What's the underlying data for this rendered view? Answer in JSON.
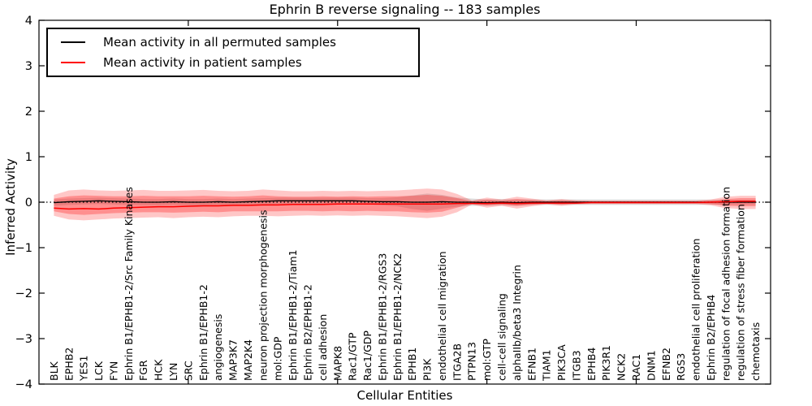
{
  "figure": {
    "title": "Ephrin B reverse signaling -- 183 samples",
    "xlabel": "Cellular Entities",
    "ylabel": "Inferred Activity"
  },
  "legend": {
    "position": "upper left",
    "items": [
      {
        "label": "Mean activity in all permuted samples",
        "color": "#000000"
      },
      {
        "label": "Mean activity in patient samples",
        "color": "#ff0000"
      }
    ]
  },
  "axes": {
    "ylim": [
      -4,
      4
    ],
    "xlim": [
      0,
      49
    ],
    "yticks": [
      {
        "value": 4,
        "label": "4"
      },
      {
        "value": 3,
        "label": "3"
      },
      {
        "value": 2,
        "label": "2"
      },
      {
        "value": 1,
        "label": "1"
      },
      {
        "value": 0,
        "label": "0"
      },
      {
        "value": -1,
        "label": "−1"
      },
      {
        "value": -2,
        "label": "−2"
      },
      {
        "value": -3,
        "label": "−3"
      },
      {
        "value": -4,
        "label": "−4"
      }
    ],
    "xtick_positions": [
      10,
      20,
      30,
      40
    ]
  },
  "colors": {
    "permuted_line": "#000000",
    "patient_line": "#ff0000",
    "patient_band": "#ff0000",
    "permuted_band": "#999999",
    "zero_line": "#000000",
    "frame": "#000000"
  },
  "chart_data": {
    "type": "line",
    "title": "Ephrin B reverse signaling -- 183 samples",
    "xlabel": "Cellular Entities",
    "ylabel": "Inferred Activity",
    "ylim": [
      -4,
      4
    ],
    "grid": false,
    "zero_line_style": "dotted",
    "legend_position": "upper left",
    "categories": [
      "BLK",
      "EPHB2",
      "YES1",
      "LCK",
      "FYN",
      "Ephrin B1/EPHB1-2/Src Family Kinases",
      "FGR",
      "HCK",
      "LYN",
      "SRC",
      "Ephrin B1/EPHB1-2",
      "angiogenesis",
      "MAP3K7",
      "MAP2K4",
      "neuron projection morphogenesis",
      "mol:GDP",
      "Ephrin B1/EPHB1-2/Tiam1",
      "Ephrin B2/EPHB1-2",
      "cell adhesion",
      "MAPK8",
      "Rac1/GTP",
      "Rac1/GDP",
      "Ephrin B1/EPHB1-2/RGS3",
      "Ephrin B1/EPHB1-2/NCK2",
      "EPHB1",
      "PI3K",
      "endothelial cell migration",
      "ITGA2B",
      "PTPN13",
      "mol:GTP",
      "cell-cell signaling",
      "alphaIIb/beta3 Integrin",
      "EFNB1",
      "TIAM1",
      "PIK3CA",
      "ITGB3",
      "EPHB4",
      "PIK3R1",
      "NCK2",
      "RAC1",
      "DNM1",
      "EFNB2",
      "RGS3",
      "endothelial cell proliferation",
      "Ephrin B2/EPHB4",
      "regulation of focal adhesion formation",
      "regulation of stress fiber formation",
      "chemotaxis"
    ],
    "series": [
      {
        "name": "Mean activity in all permuted samples",
        "color": "#000000",
        "values": [
          -0.01,
          0.01,
          0.02,
          0.03,
          0.02,
          0.01,
          0.0,
          0.0,
          0.01,
          0.0,
          0.0,
          0.01,
          0.0,
          0.01,
          0.02,
          0.03,
          0.03,
          0.03,
          0.03,
          0.03,
          0.03,
          0.02,
          0.01,
          0.01,
          0.0,
          0.0,
          0.01,
          0.0,
          0.0,
          -0.01,
          0.0,
          -0.01,
          0.0,
          0.0,
          0.0,
          0.0,
          0.0,
          0.0,
          0.0,
          0.0,
          0.0,
          0.0,
          0.0,
          0.0,
          0.0,
          0.0,
          0.0,
          0.0
        ]
      },
      {
        "name": "Mean activity in patient samples",
        "color": "#ff0000",
        "values": [
          -0.13,
          -0.15,
          -0.14,
          -0.15,
          -0.13,
          -0.12,
          -0.11,
          -0.1,
          -0.1,
          -0.09,
          -0.08,
          -0.08,
          -0.07,
          -0.07,
          -0.06,
          -0.06,
          -0.05,
          -0.05,
          -0.05,
          -0.04,
          -0.04,
          -0.04,
          -0.04,
          -0.04,
          -0.04,
          -0.04,
          -0.04,
          -0.03,
          -0.03,
          -0.03,
          -0.02,
          -0.03,
          -0.02,
          -0.02,
          -0.02,
          -0.02,
          -0.01,
          -0.01,
          -0.01,
          -0.01,
          -0.01,
          -0.01,
          -0.01,
          -0.01,
          0.0,
          0.01,
          0.02,
          0.02
        ]
      }
    ],
    "bands": {
      "patient_outer_top": [
        0.16,
        0.26,
        0.28,
        0.26,
        0.25,
        0.26,
        0.27,
        0.25,
        0.25,
        0.26,
        0.27,
        0.25,
        0.24,
        0.25,
        0.28,
        0.26,
        0.24,
        0.24,
        0.25,
        0.24,
        0.25,
        0.24,
        0.25,
        0.26,
        0.28,
        0.3,
        0.28,
        0.18,
        0.04,
        0.1,
        0.06,
        0.12,
        0.08,
        0.04,
        0.07,
        0.04,
        0.035,
        0.035,
        0.035,
        0.035,
        0.035,
        0.035,
        0.035,
        0.035,
        0.06,
        0.12,
        0.14,
        0.14
      ],
      "patient_outer_bottom": [
        -0.3,
        -0.38,
        -0.4,
        -0.38,
        -0.36,
        -0.35,
        -0.34,
        -0.33,
        -0.35,
        -0.33,
        -0.32,
        -0.33,
        -0.31,
        -0.3,
        -0.3,
        -0.31,
        -0.3,
        -0.29,
        -0.3,
        -0.29,
        -0.3,
        -0.29,
        -0.3,
        -0.31,
        -0.33,
        -0.35,
        -0.32,
        -0.22,
        -0.05,
        -0.12,
        -0.08,
        -0.14,
        -0.09,
        -0.05,
        -0.08,
        -0.05,
        -0.04,
        -0.04,
        -0.04,
        -0.04,
        -0.04,
        -0.04,
        -0.04,
        -0.04,
        -0.07,
        -0.13,
        -0.15,
        -0.15
      ],
      "patient_inner_top": [
        0.08,
        0.13,
        0.15,
        0.14,
        0.13,
        0.13,
        0.14,
        0.13,
        0.13,
        0.13,
        0.14,
        0.13,
        0.12,
        0.13,
        0.15,
        0.13,
        0.12,
        0.12,
        0.13,
        0.12,
        0.13,
        0.12,
        0.13,
        0.13,
        0.14,
        0.16,
        0.14,
        0.09,
        0.02,
        0.06,
        0.035,
        0.07,
        0.05,
        0.025,
        0.04,
        0.025,
        0.02,
        0.02,
        0.02,
        0.02,
        0.02,
        0.02,
        0.02,
        0.02,
        0.035,
        0.07,
        0.09,
        0.09
      ],
      "patient_inner_bottom": [
        -0.2,
        -0.26,
        -0.28,
        -0.26,
        -0.24,
        -0.23,
        -0.22,
        -0.22,
        -0.23,
        -0.22,
        -0.21,
        -0.22,
        -0.2,
        -0.2,
        -0.2,
        -0.2,
        -0.19,
        -0.19,
        -0.2,
        -0.19,
        -0.2,
        -0.19,
        -0.2,
        -0.2,
        -0.22,
        -0.23,
        -0.21,
        -0.12,
        -0.03,
        -0.07,
        -0.05,
        -0.08,
        -0.055,
        -0.03,
        -0.05,
        -0.03,
        -0.025,
        -0.025,
        -0.025,
        -0.025,
        -0.025,
        -0.025,
        -0.025,
        -0.025,
        -0.04,
        -0.08,
        -0.09,
        -0.09
      ],
      "permuted_half_width": [
        0.07,
        0.07,
        0.07,
        0.07,
        0.07,
        0.07,
        0.07,
        0.07,
        0.07,
        0.07,
        0.07,
        0.07,
        0.07,
        0.07,
        0.07,
        0.07,
        0.07,
        0.07,
        0.07,
        0.07,
        0.07,
        0.07,
        0.08,
        0.1,
        0.15,
        0.19,
        0.15,
        0.1,
        0.08,
        0.07,
        0.07,
        0.07,
        0.06,
        0.06,
        0.06,
        0.06,
        0.06,
        0.06,
        0.06,
        0.06,
        0.06,
        0.06,
        0.06,
        0.06,
        0.055,
        0.05,
        0.05,
        0.05
      ]
    }
  }
}
